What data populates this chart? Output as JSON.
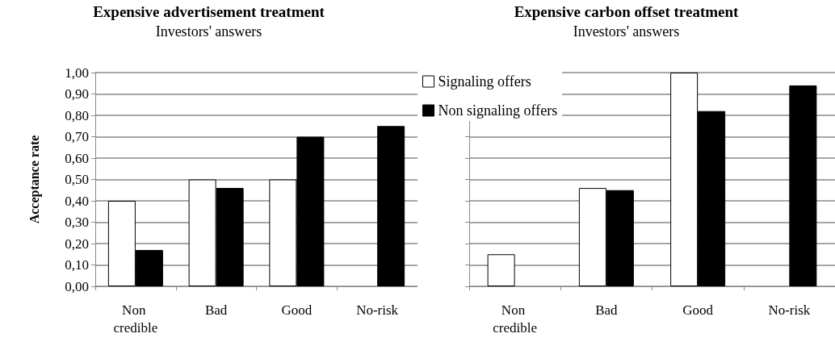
{
  "chart_data": [
    {
      "type": "bar",
      "title": "Expensive advertisement treatment",
      "subtitle": "Investors' answers",
      "ylabel": "Acceptance rate",
      "categories": [
        "Non credible",
        "Bad",
        "Good",
        "No-risk"
      ],
      "series": [
        {
          "color": "#ffffff",
          "values": [
            0.4,
            0.5,
            0.5,
            null
          ]
        },
        {
          "color": "#000000",
          "values": [
            0.17,
            0.46,
            0.7,
            0.75
          ]
        }
      ],
      "ylim": [
        0,
        1
      ],
      "yticks": [
        {
          "value": 0,
          "label": "0,00"
        },
        {
          "value": 0.1,
          "label": "0,10"
        },
        {
          "value": 0.2,
          "label": "0,20"
        },
        {
          "value": 0.3,
          "label": "0,30"
        },
        {
          "value": 0.4,
          "label": "0,40"
        },
        {
          "value": 0.5,
          "label": "0,50"
        },
        {
          "value": 0.6,
          "label": "0,60"
        },
        {
          "value": 0.7,
          "label": "0,70"
        },
        {
          "value": 0.8,
          "label": "0,80"
        },
        {
          "value": 0.9,
          "label": "0,90"
        },
        {
          "value": 1,
          "label": "1,00"
        }
      ],
      "grid": "y"
    },
    {
      "type": "bar",
      "title": "Expensive carbon offset treatment",
      "subtitle": "Investors' answers",
      "categories": [
        "Non credible",
        "Bad",
        "Good",
        "No-risk"
      ],
      "series": [
        {
          "name": "Signaling offers",
          "color": "#ffffff",
          "values": [
            0.15,
            0.46,
            1.0,
            null
          ]
        },
        {
          "name": "Non signaling offers",
          "color": "#000000",
          "values": [
            null,
            0.45,
            0.82,
            0.94
          ]
        }
      ],
      "ylim": [
        0,
        1
      ],
      "yticks": [
        {
          "value": 0,
          "label": null
        },
        {
          "value": 0.1,
          "label": null
        },
        {
          "value": 0.2,
          "label": null
        },
        {
          "value": 0.3,
          "label": null
        },
        {
          "value": 0.4,
          "label": null
        },
        {
          "value": 0.5,
          "label": null
        },
        {
          "value": 0.6,
          "label": null
        },
        {
          "value": 0.7,
          "label": null
        },
        {
          "value": 0.8,
          "label": null
        },
        {
          "value": 0.9,
          "label": null
        },
        {
          "value": 1,
          "label": null
        }
      ],
      "grid": "y",
      "tick_labels": "x",
      "legend": "top left"
    }
  ]
}
